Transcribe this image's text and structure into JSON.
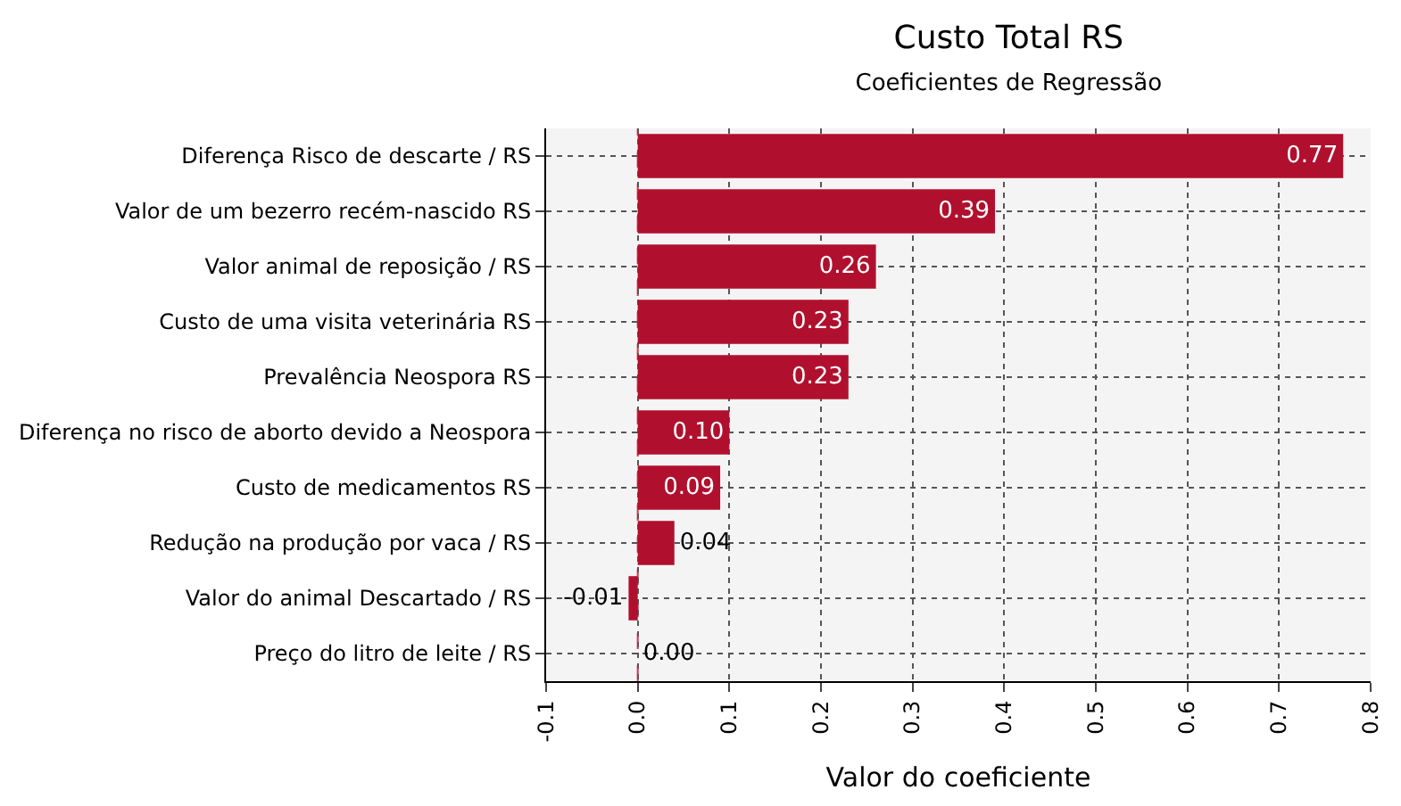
{
  "chart_data": {
    "type": "bar",
    "orientation": "horizontal",
    "title": "Custo Total RS",
    "subtitle": "Coeficientes de Regressão",
    "xlabel": "Valor do coeficiente",
    "categories": [
      "Diferença Risco de descarte / RS",
      "Valor de um bezerro recém-nascido RS",
      "Valor animal de reposição / RS",
      "Custo de uma visita veterinária RS",
      "Prevalência Neospora RS",
      "Diferença no risco de aborto devido a Neospora",
      "Custo de medicamentos RS",
      "Redução na produção por vaca / RS",
      "Valor do animal Descartado / RS",
      "Preço do litro de leite / RS"
    ],
    "values": [
      0.77,
      0.39,
      0.26,
      0.23,
      0.23,
      0.1,
      0.09,
      0.04,
      -0.01,
      0.0
    ],
    "value_labels": [
      "0.77",
      "0.39",
      "0.26",
      "0.23",
      "0.23",
      "0.10",
      "0.09",
      "0.04",
      "-0.01",
      "0.00"
    ],
    "color": "#b0102e",
    "xlim": [
      -0.1,
      0.8
    ],
    "xticks": [
      {
        "value": -0.1,
        "label": "-0.1"
      },
      {
        "value": 0,
        "label": "0.0"
      },
      {
        "value": 0.1,
        "label": "0.1"
      },
      {
        "value": 0.2,
        "label": "0.2"
      },
      {
        "value": 0.3,
        "label": "0.3"
      },
      {
        "value": 0.4,
        "label": "0.4"
      },
      {
        "value": 0.5,
        "label": "0.5"
      },
      {
        "value": 0.6,
        "label": "0.6"
      },
      {
        "value": 0.7,
        "label": "0.7"
      },
      {
        "value": 0.8,
        "label": "0.8"
      }
    ],
    "ref_lines": [
      {
        "axis": "x",
        "value": 0,
        "color": "#e0304a",
        "line_style": "dashed"
      }
    ],
    "grid": true
  }
}
